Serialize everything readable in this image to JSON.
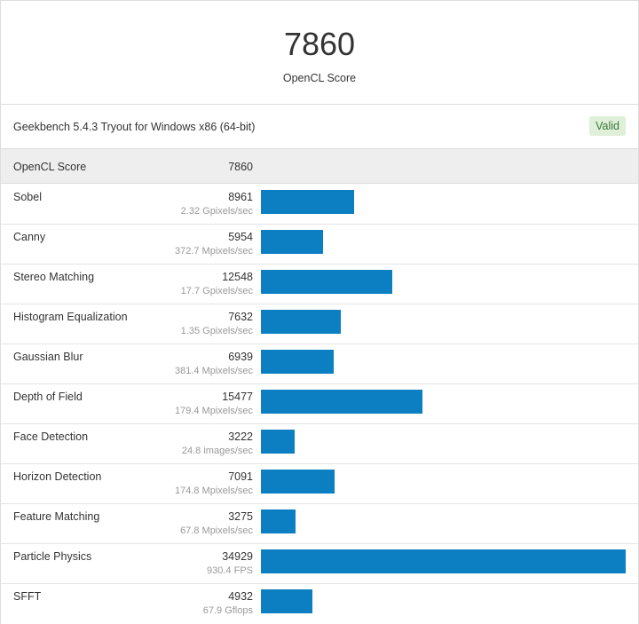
{
  "score": {
    "value": "7860",
    "label": "OpenCL Score"
  },
  "version": {
    "text": "Geekbench 5.4.3 Tryout for Windows x86 (64-bit)",
    "badge": "Valid"
  },
  "table": {
    "header_label": "OpenCL Score",
    "header_score": "7860",
    "bar_color": "#0b7fc2",
    "max_score": 34929,
    "rows": [
      {
        "name": "Sobel",
        "score": "8961",
        "rate": "2.32 Gpixels/sec"
      },
      {
        "name": "Canny",
        "score": "5954",
        "rate": "372.7 Mpixels/sec"
      },
      {
        "name": "Stereo Matching",
        "score": "12548",
        "rate": "17.7 Gpixels/sec"
      },
      {
        "name": "Histogram Equalization",
        "score": "7632",
        "rate": "1.35 Gpixels/sec"
      },
      {
        "name": "Gaussian Blur",
        "score": "6939",
        "rate": "381.4 Mpixels/sec"
      },
      {
        "name": "Depth of Field",
        "score": "15477",
        "rate": "179.4 Mpixels/sec"
      },
      {
        "name": "Face Detection",
        "score": "3222",
        "rate": "24.8 images/sec"
      },
      {
        "name": "Horizon Detection",
        "score": "7091",
        "rate": "174.8 Mpixels/sec"
      },
      {
        "name": "Feature Matching",
        "score": "3275",
        "rate": "67.8 Mpixels/sec"
      },
      {
        "name": "Particle Physics",
        "score": "34929",
        "rate": "930.4 FPS"
      },
      {
        "name": "SFFT",
        "score": "4932",
        "rate": "67.9 Gflops"
      }
    ]
  }
}
